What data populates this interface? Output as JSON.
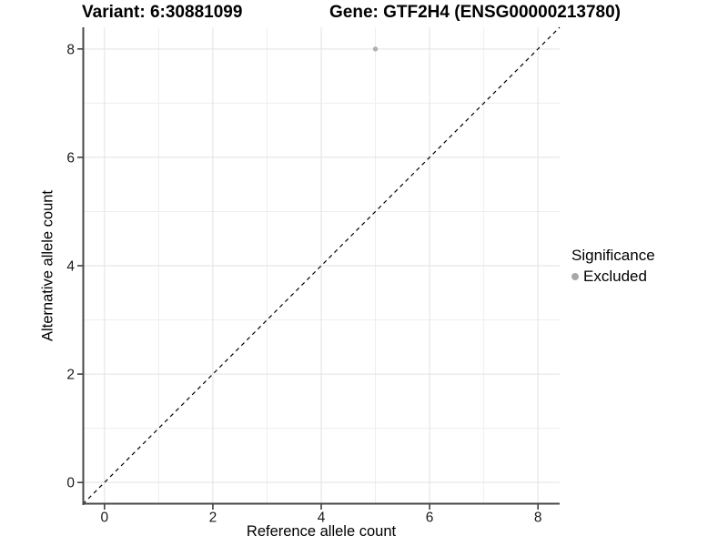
{
  "header": {
    "variant_title": "Variant: 6:30881099",
    "gene_title": "Gene: GTF2H4 (ENSG00000213780)"
  },
  "chart_data": {
    "type": "scatter",
    "xlabel": "Reference allele count",
    "ylabel": "Alternative allele count",
    "xlim": [
      -0.4,
      8.4
    ],
    "ylim": [
      -0.4,
      8.4
    ],
    "x_ticks": [
      0,
      2,
      4,
      6,
      8
    ],
    "y_ticks": [
      0,
      2,
      4,
      6,
      8
    ],
    "x_minor_gridlines": [
      1,
      3,
      5,
      7
    ],
    "y_minor_gridlines": [
      1,
      3,
      5,
      7
    ],
    "grid": "on",
    "identity_line": {
      "style": "dashed",
      "from": [
        -0.4,
        -0.4
      ],
      "to": [
        8.4,
        8.4
      ],
      "color": "#000000"
    },
    "series": [
      {
        "name": "Excluded",
        "color": "#b0b0b0",
        "points": [
          [
            5,
            8
          ]
        ],
        "point_radius": 2.7
      }
    ],
    "legend": {
      "title": "Significance",
      "position": "right",
      "items": [
        {
          "label": "Excluded",
          "color": "#a8a8a8"
        }
      ]
    }
  },
  "colors": {
    "background": "#ffffff",
    "grid_major": "#e2e2e2",
    "grid_minor": "#eeeeee",
    "axis_line": "#474747",
    "tick_mark": "#333333",
    "tick_text": "#1a1a1a"
  }
}
